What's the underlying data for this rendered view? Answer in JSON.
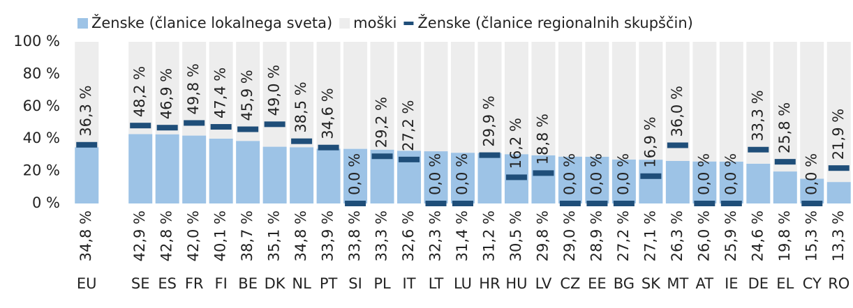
{
  "chart_data": {
    "type": "bar",
    "categories": [
      "EU",
      null,
      "SE",
      "ES",
      "FR",
      "FI",
      "BE",
      "DK",
      "NL",
      "PT",
      "SI",
      "PL",
      "IT",
      "LT",
      "LU",
      "HR",
      "HU",
      "LV",
      "CZ",
      "EE",
      "BG",
      "SK",
      "MT",
      "AT",
      "IE",
      "DE",
      "EL",
      "CY",
      "RO"
    ],
    "series": [
      {
        "name": "Ženske (članice lokalnega sveta)",
        "color": "#9dc3e6",
        "stack": true,
        "values": [
          34.8,
          null,
          42.9,
          42.8,
          42.0,
          40.1,
          38.7,
          35.1,
          34.8,
          33.9,
          33.8,
          33.3,
          32.6,
          32.3,
          31.4,
          31.2,
          30.5,
          29.8,
          29.0,
          28.9,
          27.2,
          27.1,
          26.3,
          26.0,
          25.9,
          24.6,
          19.8,
          15.3,
          13.3
        ],
        "value_labels": [
          "34,8 %",
          null,
          "42,9 %",
          "42,8 %",
          "42,0 %",
          "40,1 %",
          "38,7 %",
          "35,1 %",
          "34,8 %",
          "33,9 %",
          "33,8 %",
          "33,3 %",
          "32,6 %",
          "32,3 %",
          "31,4 %",
          "31,2 %",
          "30,5 %",
          "29,8 %",
          "29,0 %",
          "28,9 %",
          "27,2 %",
          "27,1 %",
          "26,3 %",
          "26,0 %",
          "25,9 %",
          "24,6 %",
          "19,8 %",
          "15,3 %",
          "13,3 %"
        ]
      },
      {
        "name": "moški",
        "color": "#ededed",
        "stack": true,
        "values": [
          65.2,
          null,
          57.1,
          57.2,
          58.0,
          59.9,
          61.3,
          64.9,
          65.2,
          66.1,
          66.2,
          66.7,
          67.4,
          67.7,
          68.6,
          68.8,
          69.5,
          70.2,
          71.0,
          71.1,
          72.8,
          72.9,
          73.7,
          74.0,
          74.1,
          75.4,
          80.2,
          84.7,
          86.7
        ]
      },
      {
        "name": "Ženske (članice regionalnih skupščin)",
        "color": "#1f4e79",
        "marker": "dash",
        "values": [
          36.3,
          null,
          48.2,
          46.9,
          49.8,
          47.4,
          45.9,
          49.0,
          38.5,
          34.6,
          0.0,
          29.2,
          27.2,
          0.0,
          0.0,
          29.9,
          16.2,
          18.8,
          0.0,
          0.0,
          0.0,
          16.9,
          36.0,
          0.0,
          0.0,
          33.3,
          25.8,
          0.0,
          21.9
        ],
        "value_labels": [
          "36,3 %",
          null,
          "48,2 %",
          "46,9 %",
          "49,8 %",
          "47,4 %",
          "45,9 %",
          "49,0 %",
          "38,5 %",
          "34,6 %",
          "0,0 %",
          "29,2 %",
          "27,2 %",
          "0,0 %",
          "0,0 %",
          "29,9 %",
          "16,2 %",
          "18,8 %",
          "0,0 %",
          "0,0 %",
          "0,0 %",
          "16,9 %",
          "36,0 %",
          "0,0 %",
          "0,0 %",
          "33,3 %",
          "25,8 %",
          "0,0 %",
          "21,9 %"
        ]
      }
    ],
    "ylim": [
      0,
      100
    ],
    "yticks": [
      {
        "value": 0,
        "label": "0 %"
      },
      {
        "value": 20,
        "label": "20 %"
      },
      {
        "value": 40,
        "label": "40 %"
      },
      {
        "value": 60,
        "label": "60 %"
      },
      {
        "value": 80,
        "label": "80 %"
      },
      {
        "value": 100,
        "label": "100 %"
      }
    ],
    "legend": "top"
  }
}
